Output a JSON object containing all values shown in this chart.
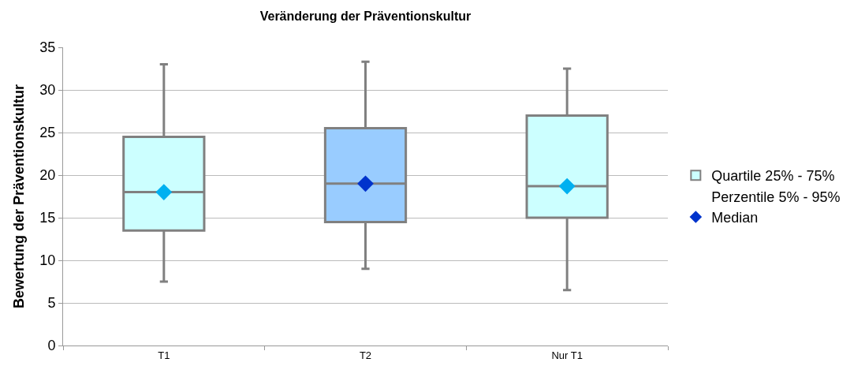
{
  "chart_data": {
    "type": "box",
    "title": "Veränderung der Präventionskultur",
    "ylabel": "Bewertung der Präventionskultur",
    "categories": [
      "T1",
      "T2",
      "Nur T1"
    ],
    "series": [
      {
        "name": "Quartile 25% - 75%",
        "color": "#808080",
        "colors": [
          "#ccffff",
          "#99ccff",
          "#ccffff"
        ],
        "boxes": [
          {
            "low": 7.5,
            "q1": 13.5,
            "median": 18,
            "q3": 24.5,
            "high": 33
          },
          {
            "low": 9,
            "q1": 14.5,
            "median": 19,
            "q3": 25.5,
            "high": 33.3
          },
          {
            "low": 6.5,
            "q1": 15,
            "median": 18.7,
            "q3": 27,
            "high": 32.5
          }
        ]
      },
      {
        "name": "Median",
        "type": "scatter",
        "x": [
          "T1",
          "T2",
          "Nur T1"
        ],
        "values": [
          18,
          19,
          18.7
        ],
        "color": "#0033cc",
        "colors": [
          "#00b0f0",
          "#0033cc",
          "#00b0f0"
        ]
      }
    ],
    "annotations": [
      "Perzentile 5% - 95%"
    ],
    "ylim": [
      0,
      35
    ],
    "yticks": [
      0,
      5,
      10,
      15,
      20,
      25,
      30,
      35
    ],
    "grid": "y",
    "legend": "right",
    "marker": "diamond"
  }
}
